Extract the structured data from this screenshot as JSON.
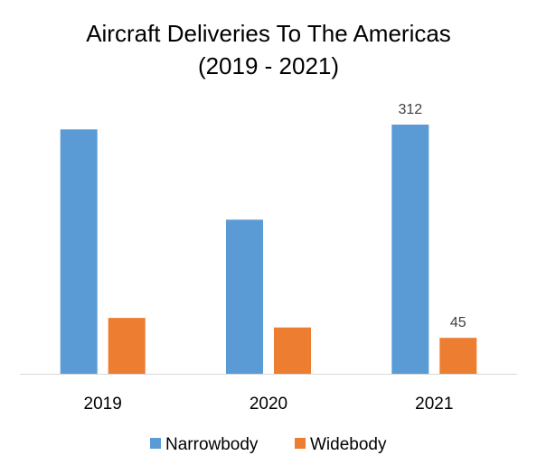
{
  "chart_data": {
    "type": "bar",
    "title": "Aircraft Deliveries To The Americas",
    "subtitle": "(2019 - 2021)",
    "xlabel": "",
    "ylabel": "",
    "categories": [
      "2019",
      "2020",
      "2021"
    ],
    "series": [
      {
        "name": "Narrowbody",
        "color": "#5b9bd5",
        "values": [
          306,
          193,
          312
        ],
        "data_labels": [
          "",
          "",
          "312"
        ]
      },
      {
        "name": "Widebody",
        "color": "#ed7d31",
        "values": [
          70,
          58,
          45
        ],
        "data_labels": [
          "",
          "",
          "45"
        ]
      }
    ],
    "ylim": [
      0,
      355
    ],
    "grid": false,
    "legend_position": "bottom"
  }
}
